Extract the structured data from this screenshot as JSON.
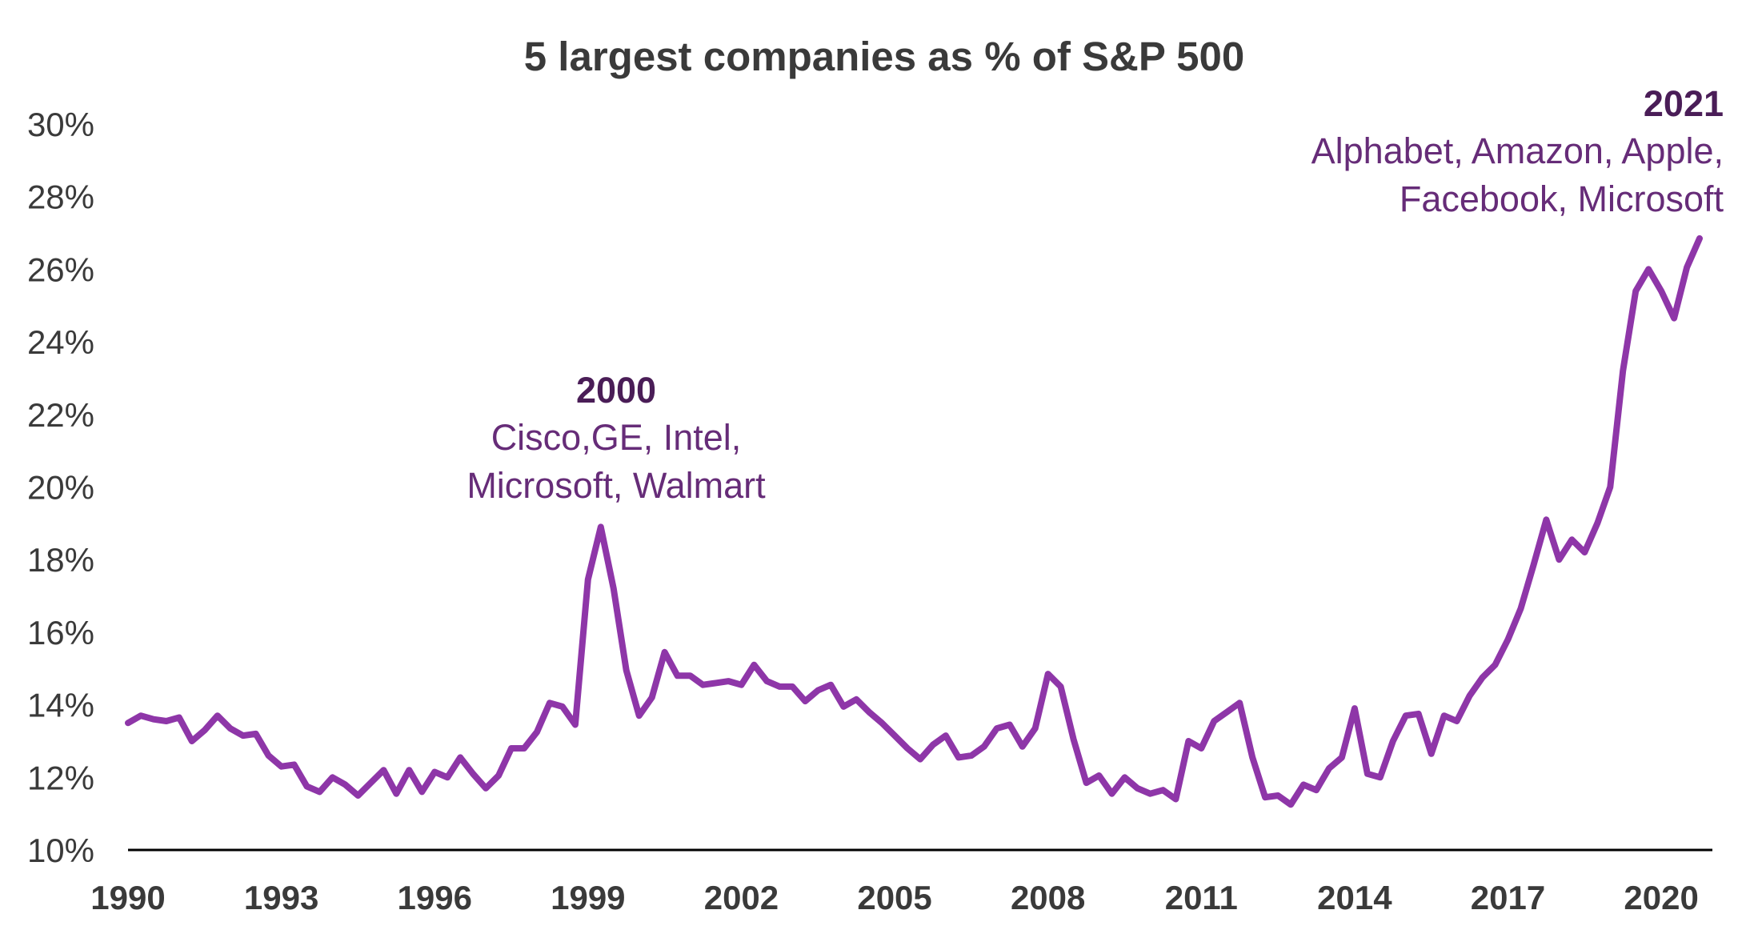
{
  "chart_data": {
    "type": "line",
    "title": "5 largest companies as % of S&P 500",
    "xlabel": "",
    "ylabel": "",
    "ylim": [
      10,
      30
    ],
    "xlim": [
      1990,
      2021
    ],
    "y_ticks": [
      10,
      12,
      14,
      16,
      18,
      20,
      22,
      24,
      26,
      28,
      30
    ],
    "y_tick_labels": [
      "10%",
      "12%",
      "14%",
      "16%",
      "18%",
      "20%",
      "22%",
      "24%",
      "26%",
      "28%",
      "30%"
    ],
    "x_ticks": [
      1990,
      1993,
      1996,
      1999,
      2002,
      2005,
      2008,
      2011,
      2014,
      2017,
      2020
    ],
    "x_tick_labels": [
      "1990",
      "1993",
      "1996",
      "1999",
      "2002",
      "2005",
      "2008",
      "2011",
      "2014",
      "2017",
      "2020"
    ],
    "grid": false,
    "line_color": "#8e36a8",
    "series": [
      {
        "name": "5 largest companies as % of S&P 500",
        "x": [
          1990.0,
          1990.25,
          1990.5,
          1990.75,
          1991.0,
          1991.25,
          1991.5,
          1991.75,
          1992.0,
          1992.25,
          1992.5,
          1992.75,
          1993.0,
          1993.25,
          1993.5,
          1993.75,
          1994.0,
          1994.25,
          1994.5,
          1994.75,
          1995.0,
          1995.25,
          1995.5,
          1995.75,
          1996.0,
          1996.25,
          1996.5,
          1996.75,
          1997.0,
          1997.25,
          1997.5,
          1997.75,
          1998.0,
          1998.25,
          1998.5,
          1998.75,
          1999.0,
          1999.25,
          1999.5,
          1999.75,
          2000.0,
          2000.25,
          2000.5,
          2000.75,
          2001.0,
          2001.25,
          2001.5,
          2001.75,
          2002.0,
          2002.25,
          2002.5,
          2002.75,
          2003.0,
          2003.25,
          2003.5,
          2003.75,
          2004.0,
          2004.25,
          2004.5,
          2004.75,
          2005.0,
          2005.25,
          2005.5,
          2005.75,
          2006.0,
          2006.25,
          2006.5,
          2006.75,
          2007.0,
          2007.25,
          2007.5,
          2007.75,
          2008.0,
          2008.25,
          2008.5,
          2008.75,
          2009.0,
          2009.25,
          2009.5,
          2009.75,
          2010.0,
          2010.25,
          2010.5,
          2010.75,
          2011.0,
          2011.25,
          2011.5,
          2011.75,
          2012.0,
          2012.25,
          2012.5,
          2012.75,
          2013.0,
          2013.25,
          2013.5,
          2013.75,
          2014.0,
          2014.25,
          2014.5,
          2014.75,
          2015.0,
          2015.25,
          2015.5,
          2015.75,
          2016.0,
          2016.25,
          2016.5,
          2016.75,
          2017.0,
          2017.25,
          2017.5,
          2017.75,
          2018.0,
          2018.25,
          2018.5,
          2018.75,
          2019.0,
          2019.25,
          2019.5,
          2019.75,
          2020.0,
          2020.25,
          2020.5,
          2020.75
        ],
        "values": [
          13.5,
          13.7,
          13.6,
          13.55,
          13.65,
          13.0,
          13.3,
          13.7,
          13.35,
          13.15,
          13.2,
          12.6,
          12.3,
          12.35,
          11.75,
          11.6,
          12.0,
          11.8,
          11.5,
          11.85,
          12.2,
          11.55,
          12.2,
          11.6,
          12.15,
          12.0,
          12.55,
          12.1,
          11.7,
          12.05,
          12.8,
          12.8,
          13.25,
          14.05,
          13.95,
          13.45,
          17.45,
          18.9,
          17.2,
          14.95,
          13.7,
          14.2,
          15.45,
          14.8,
          14.8,
          14.55,
          14.6,
          14.65,
          14.55,
          15.1,
          14.65,
          14.5,
          14.5,
          14.1,
          14.4,
          14.55,
          13.95,
          14.15,
          13.8,
          13.5,
          13.15,
          12.8,
          12.5,
          12.9,
          13.15,
          12.55,
          12.6,
          12.85,
          13.35,
          13.45,
          12.85,
          13.35,
          14.85,
          14.5,
          13.05,
          11.85,
          12.05,
          11.55,
          12.0,
          11.7,
          11.55,
          11.65,
          11.4,
          13.0,
          12.8,
          13.55,
          13.8,
          14.05,
          12.55,
          11.45,
          11.5,
          11.25,
          11.8,
          11.65,
          12.25,
          12.55,
          13.9,
          12.1,
          12.0,
          13.0,
          13.7,
          13.75,
          12.65,
          13.7,
          13.55,
          14.25,
          14.75,
          15.1,
          15.8,
          16.65,
          17.85,
          19.1,
          18.0,
          18.55,
          18.2,
          19.0,
          20.0,
          23.2,
          25.4,
          26.0,
          25.4,
          24.65,
          26.05,
          26.85
        ]
      }
    ],
    "annotations": [
      {
        "year": "2000",
        "text_line1": "Cisco,GE, Intel,",
        "text_line2": "Microsoft, Walmart"
      },
      {
        "year": "2021",
        "text_line1": "Alphabet, Amazon, Apple,",
        "text_line2": "Facebook, Microsoft"
      }
    ]
  }
}
